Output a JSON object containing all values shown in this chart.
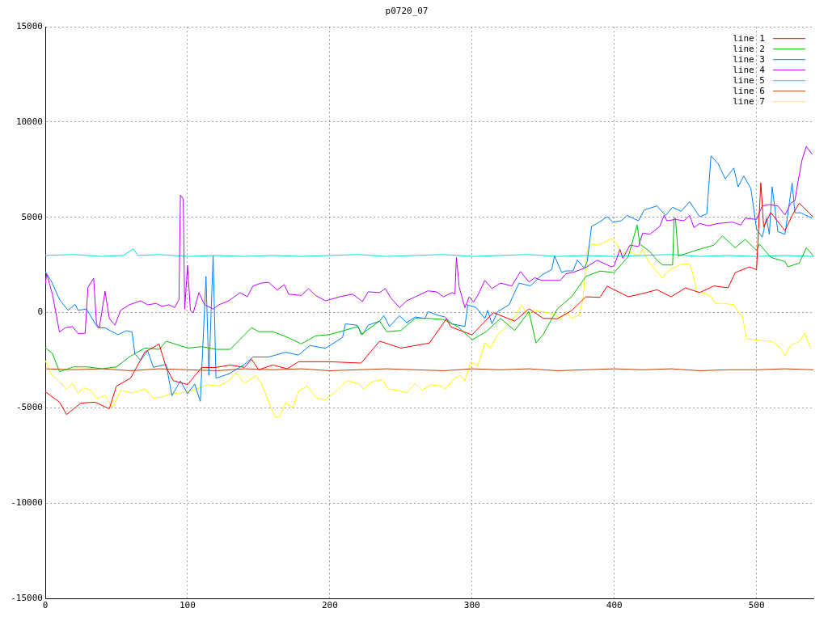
{
  "chart_data": {
    "type": "line",
    "title": "p0720_07",
    "xlim": [
      0,
      540
    ],
    "xticks": [
      0,
      100,
      200,
      300,
      400,
      500
    ],
    "ylim": [
      -15000,
      15000
    ],
    "yticks": [
      -15000,
      -10000,
      -5000,
      0,
      5000,
      10000,
      15000
    ],
    "grid": true,
    "legend": "top right",
    "line_style": "solid",
    "series": [
      {
        "name": "line 1",
        "color": "#ff0000",
        "x": [
          0,
          10,
          15,
          25,
          35,
          45,
          50,
          60,
          70,
          75,
          80,
          85,
          90,
          100,
          110,
          120,
          130,
          140,
          145,
          150,
          160,
          170,
          178,
          200,
          222,
          235,
          250,
          270,
          282,
          285,
          300,
          315,
          330,
          340,
          350,
          360,
          370,
          380,
          390,
          395,
          400,
          410,
          420,
          430,
          440,
          450,
          460,
          470,
          480,
          485,
          495,
          500,
          503,
          505,
          510,
          520,
          525,
          530,
          540
        ],
        "values": [
          -4150,
          -4700,
          -5350,
          -4750,
          -4700,
          -5050,
          -3860,
          -3440,
          -2070,
          -1860,
          -1650,
          -2880,
          -3570,
          -3780,
          -2880,
          -2880,
          -2750,
          -2880,
          -2450,
          -3000,
          -2750,
          -2950,
          -2580,
          -2580,
          -2650,
          -1500,
          -1860,
          -1600,
          -320,
          -750,
          -1170,
          0,
          -450,
          200,
          -300,
          -320,
          100,
          830,
          800,
          1390,
          1200,
          830,
          1000,
          1200,
          830,
          1300,
          1050,
          1400,
          1300,
          2100,
          2400,
          2250,
          6810,
          4500,
          5250,
          4300,
          5100,
          5750,
          5000
        ]
      },
      {
        "name": "line 2",
        "color": "#00c000",
        "x": [
          0,
          5,
          10,
          20,
          30,
          40,
          50,
          60,
          70,
          80,
          85,
          100,
          110,
          120,
          130,
          140,
          145,
          150,
          160,
          170,
          180,
          190,
          200,
          210,
          220,
          222,
          235,
          240,
          250,
          260,
          270,
          280,
          290,
          300,
          310,
          320,
          330,
          340,
          345,
          350,
          360,
          370,
          380,
          390,
          400,
          410,
          416,
          418,
          425,
          430,
          434,
          441,
          442,
          443,
          445,
          460,
          470,
          476,
          485,
          492,
          500,
          502,
          510,
          520,
          522,
          530,
          535,
          540
        ],
        "values": [
          -1840,
          -2140,
          -3100,
          -2850,
          -2850,
          -2950,
          -2850,
          -2280,
          -1860,
          -1930,
          -1500,
          -1860,
          -1790,
          -1930,
          -1930,
          -1170,
          -790,
          -1000,
          -1000,
          -1290,
          -1640,
          -1220,
          -1150,
          -940,
          -730,
          -1150,
          -440,
          -1000,
          -940,
          -300,
          -300,
          -370,
          -730,
          -1430,
          -1000,
          -300,
          -940,
          60,
          -1600,
          -1150,
          200,
          830,
          1900,
          2180,
          2100,
          2970,
          4600,
          3600,
          3200,
          2760,
          2500,
          2500,
          4960,
          4960,
          2970,
          3330,
          3540,
          4030,
          3400,
          3850,
          3260,
          3600,
          2900,
          2680,
          2400,
          2600,
          3400,
          2970
        ]
      },
      {
        "name": "line 3",
        "color": "#0080ff",
        "x": [
          0,
          4,
          10,
          16,
          21,
          23,
          29,
          34,
          37,
          42,
          51,
          57,
          61,
          63,
          67,
          72,
          76,
          85,
          89,
          95,
          100,
          105,
          109,
          113,
          115,
          118,
          120,
          129,
          140,
          146,
          157,
          169,
          178,
          186,
          197,
          203,
          209,
          211,
          219,
          223,
          227,
          235,
          238,
          242,
          249,
          254,
          260,
          267,
          269,
          277,
          281,
          286,
          295,
          297,
          303,
          309,
          311,
          314,
          318,
          326,
          333,
          341,
          349,
          356,
          358,
          363,
          366,
          371,
          374,
          379,
          381,
          384,
          388,
          395,
          399,
          405,
          409,
          417,
          421,
          430,
          436,
          441,
          447,
          453,
          460,
          465,
          468,
          473,
          478,
          484,
          487,
          491,
          496,
          500,
          504,
          507,
          509,
          511,
          515,
          520,
          525,
          527,
          531,
          537,
          539
        ],
        "values": [
          2140,
          1690,
          690,
          120,
          430,
          120,
          190,
          -450,
          -800,
          -800,
          -1160,
          -950,
          -1020,
          -2160,
          -2510,
          -2010,
          -2870,
          -2720,
          -4360,
          -3580,
          -4260,
          -3750,
          -4660,
          1900,
          -3300,
          2970,
          -3440,
          -3220,
          -2720,
          -2330,
          -2330,
          -2080,
          -2230,
          -1730,
          -1870,
          -1590,
          -1300,
          -590,
          -660,
          -1160,
          -660,
          -450,
          -160,
          -730,
          -160,
          -520,
          -230,
          -310,
          50,
          -160,
          -230,
          -590,
          -730,
          410,
          260,
          -310,
          120,
          -590,
          50,
          410,
          1550,
          1400,
          1970,
          2260,
          2970,
          2110,
          2190,
          2190,
          2750,
          2330,
          2680,
          4530,
          4680,
          5030,
          4750,
          4820,
          5100,
          4820,
          5390,
          5600,
          5100,
          5530,
          5320,
          5820,
          5030,
          5180,
          8230,
          7810,
          7020,
          7590,
          6600,
          7170,
          6520,
          4390,
          3960,
          4960,
          4110,
          6600,
          4250,
          4110,
          6810,
          5240,
          5240,
          5030,
          4960
        ]
      },
      {
        "name": "line 4",
        "color": "#c000ff",
        "x": [
          0,
          1,
          5,
          10,
          14,
          19,
          23,
          28,
          30,
          34,
          36,
          38,
          42,
          45,
          49,
          53,
          59,
          67,
          72,
          78,
          82,
          87,
          91,
          94,
          95,
          97,
          98,
          100,
          102,
          104,
          108,
          112,
          118,
          122,
          129,
          137,
          142,
          146,
          152,
          157,
          163,
          168,
          171,
          180,
          185,
          190,
          197,
          207,
          216,
          223,
          227,
          235,
          239,
          243,
          249,
          254,
          261,
          269,
          275,
          280,
          286,
          288,
          289,
          291,
          295,
          298,
          301,
          304,
          309,
          314,
          320,
          328,
          334,
          340,
          344,
          349,
          355,
          362,
          366,
          371,
          379,
          388,
          398,
          400,
          404,
          406,
          411,
          417,
          420,
          425,
          432,
          435,
          437,
          443,
          449,
          453,
          456,
          460,
          466,
          473,
          483,
          489,
          492,
          500,
          504,
          509,
          515,
          520,
          524,
          527,
          529,
          532,
          535,
          539
        ],
        "values": [
          1470,
          2040,
          970,
          -1020,
          -800,
          -730,
          -1090,
          -1090,
          1330,
          1800,
          -590,
          -800,
          1120,
          -310,
          -660,
          120,
          410,
          620,
          410,
          480,
          330,
          410,
          260,
          690,
          6170,
          5960,
          190,
          2470,
          120,
          -20,
          1050,
          410,
          190,
          410,
          620,
          1050,
          830,
          1400,
          1550,
          1590,
          1190,
          1470,
          970,
          900,
          1260,
          900,
          620,
          830,
          970,
          580,
          1090,
          1050,
          1260,
          760,
          260,
          620,
          860,
          1140,
          1090,
          830,
          1050,
          970,
          2900,
          1330,
          260,
          830,
          550,
          900,
          1690,
          1260,
          1550,
          1400,
          2160,
          1610,
          1830,
          1690,
          1690,
          1690,
          2040,
          2110,
          2330,
          2750,
          2400,
          2470,
          3320,
          2850,
          3540,
          3470,
          4180,
          4110,
          4530,
          5100,
          4820,
          4890,
          4820,
          5100,
          4460,
          4680,
          4560,
          4680,
          4750,
          4600,
          4960,
          4890,
          5600,
          5670,
          5600,
          5130,
          5740,
          5880,
          6810,
          8020,
          8730,
          8310
        ]
      },
      {
        "name": "line 5",
        "color": "#00e0e0",
        "x": [
          0,
          20,
          40,
          55,
          62,
          65,
          80,
          100,
          120,
          140,
          160,
          180,
          200,
          220,
          240,
          260,
          280,
          300,
          320,
          340,
          360,
          380,
          400,
          420,
          440,
          460,
          480,
          500,
          520,
          540
        ],
        "values": [
          3000,
          3050,
          2950,
          3000,
          3350,
          3000,
          3050,
          2950,
          3000,
          2950,
          3000,
          2950,
          3000,
          3050,
          2950,
          3000,
          3050,
          2950,
          3000,
          3050,
          2950,
          3000,
          2950,
          3000,
          3050,
          2950,
          3000,
          2950,
          3000,
          2950
        ]
      },
      {
        "name": "line 6",
        "color": "#c04000",
        "x": [
          0,
          20,
          40,
          60,
          80,
          100,
          120,
          140,
          160,
          180,
          200,
          220,
          240,
          260,
          280,
          300,
          320,
          340,
          360,
          380,
          400,
          420,
          440,
          460,
          480,
          500,
          520,
          540
        ],
        "values": [
          -2950,
          -3000,
          -2950,
          -3050,
          -2950,
          -3000,
          -3050,
          -2950,
          -3000,
          -2950,
          -3050,
          -3000,
          -2950,
          -3000,
          -3050,
          -2950,
          -3000,
          -2950,
          -3050,
          -3000,
          -2950,
          -3000,
          -2950,
          -3050,
          -3000,
          -3000,
          -2950,
          -3000
        ]
      },
      {
        "name": "line 7",
        "color": "#ffff00",
        "x": [
          0,
          4,
          10,
          15,
          19,
          23,
          27,
          32,
          36,
          42,
          44,
          47,
          53,
          61,
          70,
          76,
          82,
          87,
          95,
          101,
          106,
          114,
          122,
          129,
          134,
          140,
          148,
          152,
          159,
          162,
          165,
          169,
          174,
          178,
          184,
          191,
          197,
          203,
          207,
          212,
          220,
          224,
          229,
          237,
          241,
          248,
          254,
          260,
          265,
          271,
          279,
          281,
          288,
          292,
          295,
          299,
          304,
          309,
          313,
          318,
          324,
          330,
          335,
          339,
          343,
          349,
          354,
          360,
          362,
          366,
          370,
          375,
          378,
          381,
          384,
          388,
          393,
          398,
          402,
          405,
          409,
          413,
          417,
          420,
          424,
          432,
          434,
          437,
          441,
          447,
          453,
          455,
          458,
          465,
          468,
          471,
          477,
          484,
          487,
          490,
          493,
          500,
          511,
          517,
          520,
          524,
          530,
          534,
          538
        ],
        "values": [
          -2510,
          -3220,
          -3650,
          -4010,
          -3720,
          -4220,
          -3940,
          -4080,
          -4500,
          -4360,
          -4580,
          -5000,
          -4080,
          -4220,
          -4010,
          -4500,
          -4430,
          -4290,
          -4220,
          -4150,
          -4010,
          -3790,
          -3860,
          -3580,
          -3150,
          -3720,
          -3300,
          -3720,
          -5070,
          -5500,
          -5430,
          -4720,
          -5000,
          -4120,
          -3860,
          -4500,
          -4580,
          -4220,
          -3940,
          -3580,
          -3720,
          -4010,
          -3650,
          -3510,
          -4010,
          -4080,
          -4220,
          -3720,
          -4080,
          -3790,
          -3860,
          -4010,
          -3440,
          -3300,
          -3580,
          -2580,
          -2800,
          -1590,
          -1870,
          -1160,
          -730,
          -230,
          410,
          -160,
          120,
          50,
          -20,
          -160,
          -380,
          50,
          -310,
          -160,
          690,
          3390,
          3610,
          3540,
          3680,
          3890,
          3610,
          2970,
          3250,
          3110,
          2970,
          3320,
          2680,
          1970,
          1830,
          2110,
          2330,
          2540,
          2540,
          2110,
          1120,
          970,
          830,
          480,
          480,
          410,
          50,
          -160,
          -1370,
          -1440,
          -1520,
          -1870,
          -2270,
          -1730,
          -1520,
          -1090,
          -1870
        ]
      }
    ]
  }
}
